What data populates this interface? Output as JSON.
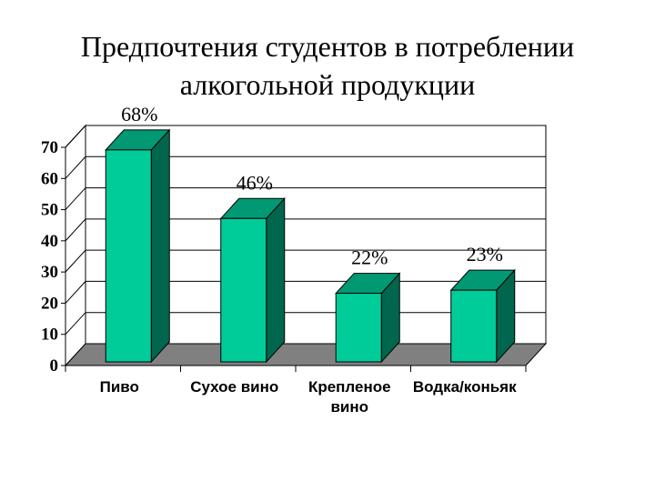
{
  "title_lines": [
    "Предпочтения студентов в потреблении",
    "алкогольной продукции"
  ],
  "chart_data": {
    "type": "bar",
    "title": "Предпочтения студентов в потреблении алкогольной продукции",
    "categories": [
      [
        "Пиво"
      ],
      [
        "Сухое вино"
      ],
      [
        "Крепленое",
        "вино"
      ],
      [
        "Водка/коньяк"
      ]
    ],
    "values": [
      68,
      46,
      22,
      23
    ],
    "data_labels": [
      "68%",
      "46%",
      "22%",
      "23%"
    ],
    "yticks": [
      "0",
      "10",
      "20",
      "30",
      "40",
      "50",
      "60",
      "70"
    ],
    "ylim": [
      0,
      70
    ],
    "grid": true,
    "three_d": true,
    "colors": {
      "bar_front": "#00cc99",
      "bar_side": "#00664d",
      "bar_top": "#009973",
      "floor": "#808080"
    }
  }
}
